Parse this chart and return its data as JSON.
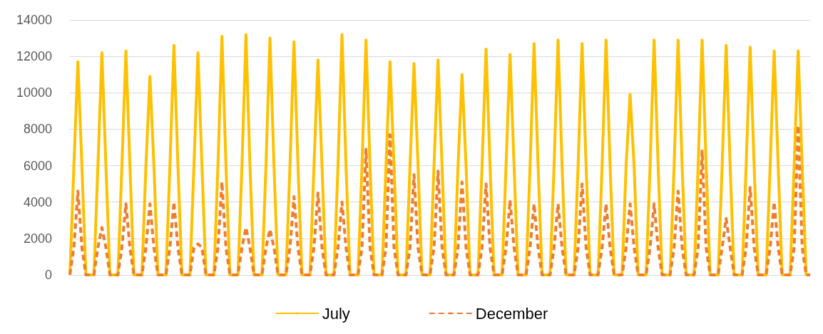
{
  "chart_data": {
    "type": "line",
    "categories": [
      null,
      null,
      null,
      null,
      null,
      null,
      null,
      null,
      null,
      null,
      null,
      null,
      null,
      null,
      null,
      null,
      null,
      null,
      null,
      null,
      null,
      null,
      null,
      null,
      null,
      null,
      null,
      null,
      null,
      null,
      null,
      null,
      null,
      null,
      null,
      null,
      null,
      null,
      null,
      null,
      null,
      null,
      null,
      null,
      null,
      null,
      null,
      null,
      null,
      null,
      null,
      null,
      null,
      null,
      null,
      null,
      null,
      null,
      null,
      null,
      null,
      null,
      null,
      null,
      null,
      null,
      null,
      null,
      null,
      null,
      null,
      null,
      null,
      null,
      null,
      null,
      null,
      null,
      null,
      null,
      null,
      null,
      null,
      null,
      null,
      null,
      null,
      null,
      null,
      null,
      null,
      null,
      null,
      null,
      null,
      null,
      null,
      null,
      null,
      null,
      null,
      null,
      null,
      null,
      null,
      null,
      null,
      null,
      null,
      null,
      null,
      null,
      null,
      null,
      null,
      null,
      null,
      null,
      null,
      null,
      null,
      null,
      null,
      null,
      null,
      null,
      null,
      null,
      null,
      null,
      null,
      null,
      null,
      null,
      null,
      null,
      null,
      null,
      null,
      null,
      null,
      null,
      null,
      null,
      null,
      null,
      null,
      null,
      null,
      null,
      null,
      null,
      null,
      null,
      null,
      null,
      null,
      null,
      null,
      null,
      null,
      null,
      null,
      null,
      null,
      null,
      null,
      null,
      null,
      null,
      null,
      null,
      null,
      null,
      null,
      null,
      null,
      null,
      null,
      null,
      null,
      null,
      null,
      null,
      null,
      null
    ],
    "series": [
      {
        "name": "July",
        "color": "#ffc000",
        "line_style": "solid",
        "values": [
          0,
          6000,
          11700,
          6000,
          0,
          0,
          0,
          6000,
          12200,
          6000,
          0,
          0,
          0,
          6000,
          12300,
          6000,
          0,
          0,
          0,
          6000,
          10900,
          6000,
          0,
          0,
          0,
          6000,
          12600,
          6000,
          0,
          0,
          0,
          6000,
          12200,
          6000,
          0,
          0,
          0,
          6000,
          13100,
          6000,
          0,
          0,
          0,
          6000,
          13200,
          6000,
          0,
          0,
          0,
          6000,
          13000,
          6000,
          0,
          0,
          0,
          6000,
          12800,
          6000,
          0,
          0,
          0,
          6000,
          11800,
          6000,
          0,
          0,
          0,
          6000,
          13200,
          6000,
          0,
          0,
          0,
          6000,
          12900,
          6000,
          0,
          0,
          0,
          6000,
          11700,
          6000,
          0,
          0,
          0,
          6000,
          11600,
          6000,
          0,
          0,
          0,
          6000,
          11800,
          6000,
          0,
          0,
          0,
          6000,
          11000,
          6000,
          0,
          0,
          0,
          6000,
          12400,
          6000,
          0,
          0,
          0,
          6000,
          12100,
          6000,
          0,
          0,
          0,
          6000,
          12700,
          6000,
          0,
          0,
          0,
          6000,
          12900,
          6000,
          0,
          0,
          0,
          6000,
          12700,
          6000,
          0,
          0,
          0,
          6000,
          12900,
          6000,
          0,
          0,
          0,
          6000,
          9900,
          6000,
          0,
          0,
          0,
          6000,
          12900,
          6000,
          0,
          0,
          0,
          6000,
          12900,
          6000,
          0,
          0,
          0,
          6000,
          12900,
          6000,
          0,
          0,
          0,
          6000,
          12600,
          6000,
          0,
          0,
          0,
          6000,
          12500,
          6000,
          0,
          0,
          0,
          6000,
          12300,
          6000,
          0,
          0,
          0,
          6000,
          12300,
          6000,
          0,
          0
        ]
      },
      {
        "name": "December",
        "color": "#ed7d31",
        "line_style": "dashed",
        "values": [
          0,
          1500,
          4600,
          1500,
          0,
          0,
          0,
          1500,
          2600,
          1500,
          0,
          0,
          0,
          1500,
          3900,
          1500,
          0,
          0,
          0,
          1500,
          3900,
          1500,
          0,
          0,
          0,
          1500,
          4000,
          1500,
          0,
          0,
          0,
          1500,
          1700,
          1500,
          0,
          0,
          0,
          1500,
          5100,
          1500,
          0,
          0,
          0,
          1500,
          2600,
          1500,
          0,
          0,
          0,
          1500,
          2500,
          1500,
          0,
          0,
          0,
          1500,
          4300,
          1500,
          0,
          0,
          0,
          1500,
          4500,
          1500,
          0,
          0,
          0,
          1500,
          4000,
          1500,
          0,
          0,
          0,
          1500,
          6900,
          1500,
          0,
          0,
          0,
          1500,
          7700,
          1500,
          0,
          0,
          0,
          1500,
          5500,
          1500,
          0,
          0,
          0,
          1500,
          5700,
          1500,
          0,
          0,
          0,
          1500,
          5100,
          1500,
          0,
          0,
          0,
          1500,
          5000,
          1500,
          0,
          0,
          0,
          1500,
          4100,
          1500,
          0,
          0,
          0,
          1500,
          3900,
          1500,
          0,
          0,
          0,
          1500,
          3900,
          1500,
          0,
          0,
          0,
          1500,
          5000,
          1500,
          0,
          0,
          0,
          1500,
          3900,
          1500,
          0,
          0,
          0,
          1500,
          3900,
          1500,
          0,
          0,
          0,
          1500,
          3900,
          1500,
          0,
          0,
          0,
          1500,
          4600,
          1500,
          0,
          0,
          0,
          1500,
          6800,
          1500,
          0,
          0,
          0,
          1500,
          3100,
          1500,
          0,
          0,
          0,
          1500,
          4800,
          1500,
          0,
          0,
          0,
          1500,
          4000,
          1500,
          0,
          0,
          0,
          1500,
          8200,
          1500,
          0,
          0
        ]
      }
    ],
    "ylim": [
      0,
      14000
    ],
    "yticks": [
      0,
      2000,
      4000,
      6000,
      8000,
      10000,
      12000,
      14000
    ],
    "grid": "y",
    "legend": "bottom",
    "marker": "none"
  }
}
